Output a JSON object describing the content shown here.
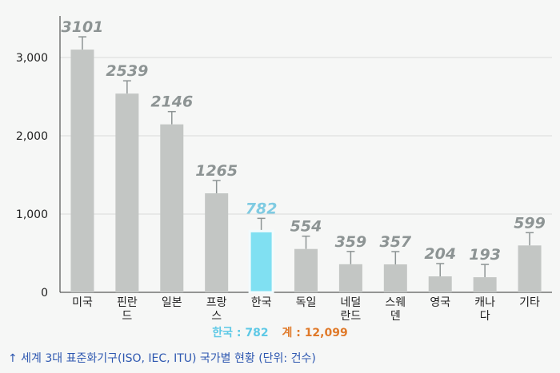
{
  "chart_data": {
    "type": "bar",
    "categories": [
      "미국",
      "핀란드",
      "일본",
      "프랑스",
      "한국",
      "독일",
      "네덜란드",
      "스웨덴",
      "영국",
      "캐나다",
      "기타"
    ],
    "category_lines": [
      [
        "미국"
      ],
      [
        "핀란",
        "드"
      ],
      [
        "일본"
      ],
      [
        "프랑",
        "스"
      ],
      [
        "한국"
      ],
      [
        "독일"
      ],
      [
        "네덜",
        "란드"
      ],
      [
        "스웨",
        "덴"
      ],
      [
        "영국"
      ],
      [
        "캐나",
        "다"
      ],
      [
        "기타"
      ]
    ],
    "values": [
      3101,
      2539,
      2146,
      1265,
      782,
      554,
      359,
      357,
      204,
      193,
      599
    ],
    "highlight_index": 4,
    "ylim": [
      0,
      3000
    ],
    "yticks": [
      0,
      1000,
      2000,
      3000
    ],
    "ytick_labels": [
      "0",
      "1,000",
      "2,000",
      "3,000"
    ],
    "grid": true,
    "colors": {
      "bar": "#c3c6c4",
      "highlight_fill": "#80e0f2",
      "highlight_stroke": "#f2fbfd",
      "value_label": "#8d9494",
      "highlight_label": "#7fcbe2",
      "grid": "#d9dbdb",
      "axis": "#333333"
    }
  },
  "summary": {
    "korea_label": "한국 : 782",
    "total_label": "계 : 12,099",
    "korea_color": "#5fc9e6",
    "total_color": "#e07a2a"
  },
  "caption": "↑ 세계 3대 표준화기구(ISO, IEC, ITU) 국가별 현황 (단위: 건수)"
}
